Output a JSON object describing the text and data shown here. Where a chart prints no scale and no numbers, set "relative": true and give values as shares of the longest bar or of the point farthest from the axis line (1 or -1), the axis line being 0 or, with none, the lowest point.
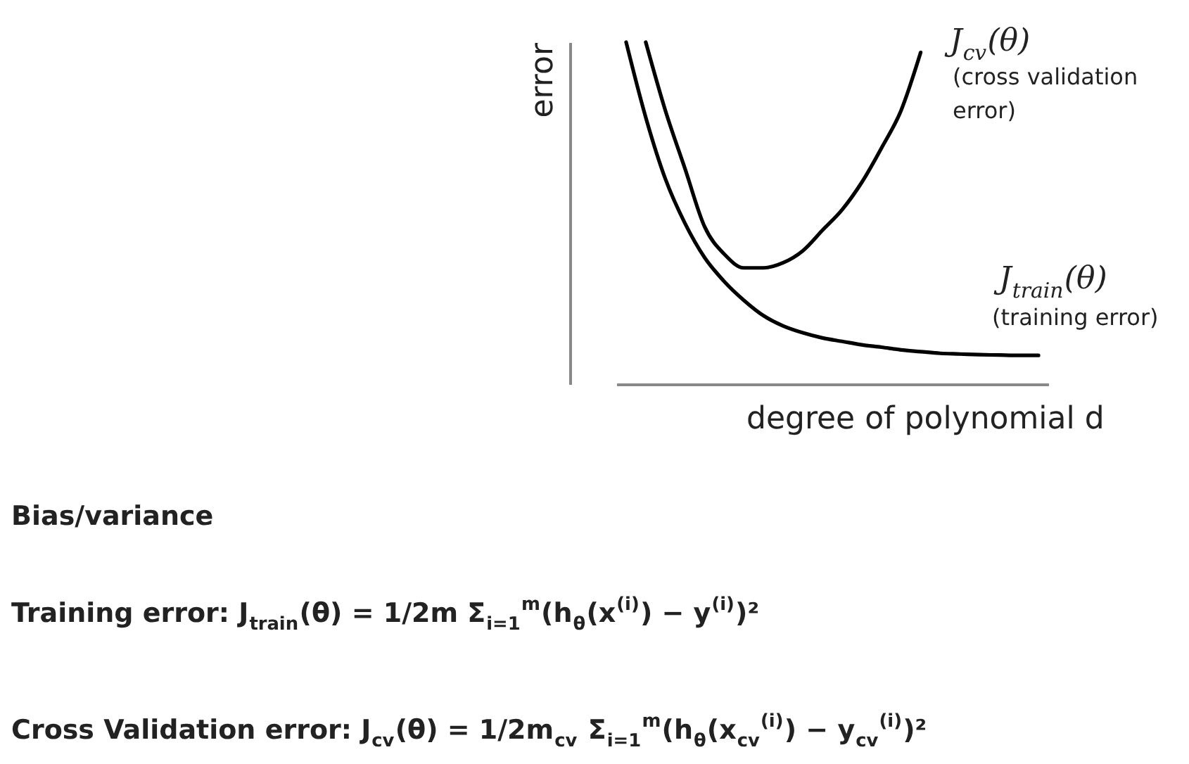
{
  "chart_data": {
    "type": "line",
    "relative": true,
    "legend": false,
    "xlabel": "degree of polynomial d",
    "ylabel": "error",
    "categories": [
      null,
      null,
      null,
      null,
      null,
      null,
      null,
      null,
      null,
      null,
      null,
      null,
      null,
      null,
      null,
      null,
      null,
      null,
      null,
      null,
      null,
      null
    ],
    "series": [
      {
        "name": "J$_{cv}$(θ)",
        "color": "#000000",
        "values": [
          null,
          1,
          0.8,
          0.63,
          0.46,
          0.38,
          0.34,
          0.34,
          0.355,
          0.39,
          0.45,
          0.51,
          0.59,
          0.69,
          0.8,
          0.97,
          null,
          null,
          null,
          null,
          null,
          null
        ]
      },
      {
        "name": "J$_{train}$(θ)",
        "color": "#000000",
        "values": [
          1,
          0.78,
          0.6,
          0.47,
          0.37,
          0.3,
          0.245,
          0.2,
          0.17,
          0.15,
          0.135,
          0.125,
          0.115,
          0.108,
          0.1,
          0.095,
          0.09,
          0.088,
          0.086,
          0.085,
          0.084,
          0.084
        ]
      }
    ],
    "annotations": [
      "(cross validation error)",
      "(training error)",
      "Bias/variance",
      "Training error: J$_{train}$(θ) = 1/2m Σ$_{i=1}$$^{m}$(h$_{θ}$(x$^{(i)}$) − y$^{(i)}$)²",
      "Cross Validation error: J$_{cv}$(θ) = 1/2m$_{cv}$ Σ$_{i=1}$$^{m}$(h$_{θ}$(x$_{cv}$$^{(i)}$) − y$_{cv}$$^{(i)}$)²"
    ]
  }
}
